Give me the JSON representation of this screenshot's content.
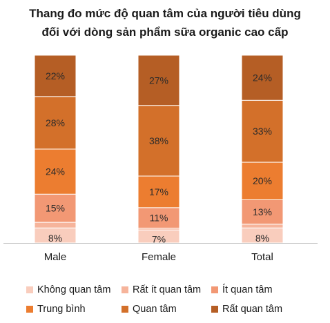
{
  "title_line1": "Thang đo mức độ quan tâm của người tiêu dùng",
  "title_line2": "đối với dòng sản phẩm sữa organic cao cấp",
  "chart_data": {
    "type": "bar",
    "stacked": true,
    "normalized": true,
    "categories": [
      "Male",
      "Female",
      "Total"
    ],
    "series": [
      {
        "name": "Không quan tâm",
        "color": "#f9cdbd",
        "values": [
          8,
          7,
          8
        ],
        "labels": [
          "8%",
          "7%",
          "8%"
        ]
      },
      {
        "name": "Rất ít quan tâm",
        "color": "#f6b49b",
        "values": [
          3,
          1,
          2
        ],
        "labels": [
          "",
          "",
          ""
        ]
      },
      {
        "name": "Ít quan tâm",
        "color": "#f29874",
        "values": [
          15,
          11,
          13
        ],
        "labels": [
          "15%",
          "11%",
          "13%"
        ]
      },
      {
        "name": "Trung bình",
        "color": "#ec7d30",
        "values": [
          24,
          17,
          20
        ],
        "labels": [
          "24%",
          "17%",
          "20%"
        ]
      },
      {
        "name": "Quan tâm",
        "color": "#d3702a",
        "values": [
          28,
          38,
          33
        ],
        "labels": [
          "28%",
          "38%",
          "33%"
        ]
      },
      {
        "name": "Rất quan tâm",
        "color": "#b55e25",
        "values": [
          22,
          27,
          24
        ],
        "labels": [
          "22%",
          "27%",
          "24%"
        ]
      }
    ],
    "legend_position": "bottom",
    "grid": false
  }
}
